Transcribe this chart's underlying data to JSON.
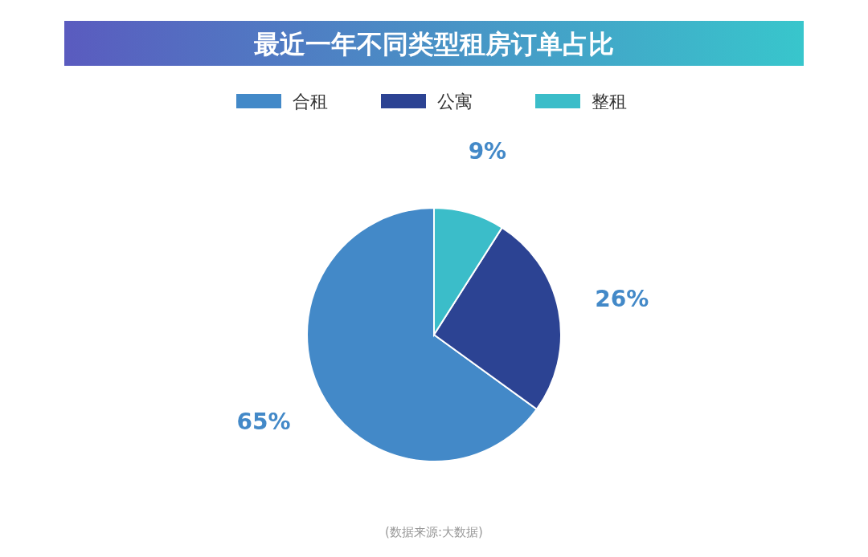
{
  "chart_data": {
    "type": "pie",
    "title": "最近一年不同类型租房订单占比",
    "categories": [
      "合租",
      "公寓",
      "整租"
    ],
    "values": [
      65,
      26,
      9
    ],
    "value_labels": [
      "65%",
      "26%",
      "9%"
    ],
    "colors": [
      "#4389c8",
      "#2c4393",
      "#3bbdc9"
    ],
    "legend": "top",
    "annotations": [
      "(数据来源:大数据)"
    ]
  }
}
